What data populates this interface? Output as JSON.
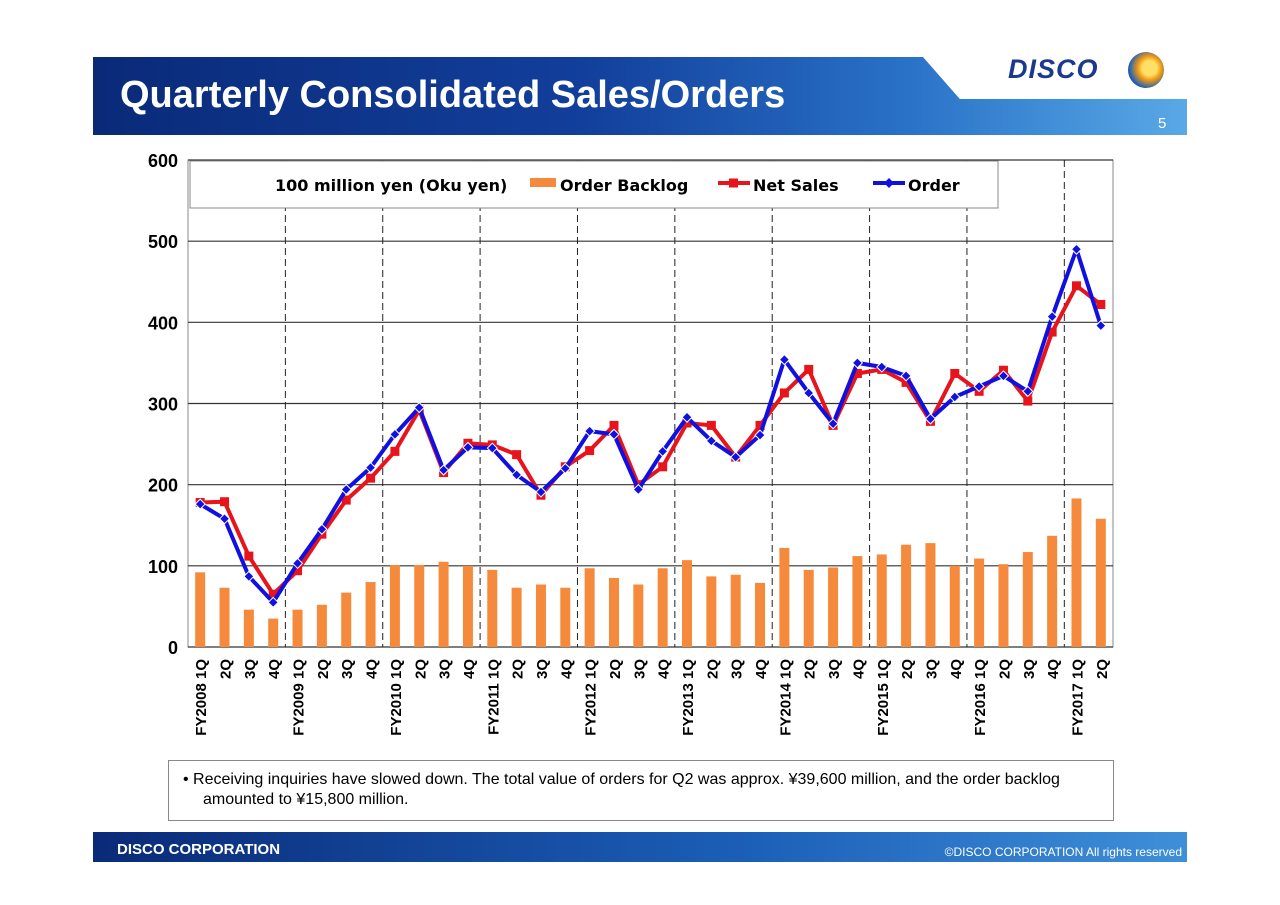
{
  "header": {
    "title": "Quarterly Consolidated Sales/Orders",
    "page_number": "5",
    "logo_text": "DISCO"
  },
  "note": "• Receiving inquiries have slowed down. The total value of orders for Q2 was approx. ¥39,600 million, and the order backlog amounted to ¥15,800 million.",
  "footer": {
    "company": "DISCO CORPORATION",
    "copyright": "©DISCO CORPORATION  All rights reserved"
  },
  "colors": {
    "backlog": "#f58a3c",
    "net_sales": "#e8141c",
    "order": "#1010e0"
  },
  "chart_data": {
    "type": "bar+line",
    "unit_label": "100 million yen (Oku yen)",
    "ylim": [
      0,
      600
    ],
    "yticks": [
      0,
      100,
      200,
      300,
      400,
      500,
      600
    ],
    "grid": true,
    "legend_position": "top",
    "categories": [
      "FY2008 1Q",
      "2Q",
      "3Q",
      "4Q",
      "FY2009 1Q",
      "2Q",
      "3Q",
      "4Q",
      "FY2010 1Q",
      "2Q",
      "3Q",
      "4Q",
      "FY2011 1Q",
      "2Q",
      "3Q",
      "4Q",
      "FY2012 1Q",
      "2Q",
      "3Q",
      "4Q",
      "FY2013 1Q",
      "2Q",
      "3Q",
      "4Q",
      "FY2014 1Q",
      "2Q",
      "3Q",
      "4Q",
      "FY2015 1Q",
      "2Q",
      "3Q",
      "4Q",
      "FY2016 1Q",
      "2Q",
      "3Q",
      "4Q",
      "FY2017 1Q",
      "2Q"
    ],
    "series": [
      {
        "name": "Order Backlog",
        "type": "bar",
        "values": [
          92,
          73,
          46,
          35,
          46,
          52,
          67,
          80,
          101,
          101,
          105,
          100,
          95,
          73,
          77,
          73,
          97,
          85,
          77,
          97,
          107,
          87,
          89,
          79,
          122,
          95,
          98,
          112,
          114,
          126,
          128,
          100,
          109,
          102,
          117,
          137,
          183,
          158
        ]
      },
      {
        "name": "Net Sales",
        "type": "line",
        "values": [
          178,
          179,
          112,
          65,
          94,
          139,
          181,
          208,
          241,
          292,
          215,
          251,
          249,
          237,
          187,
          222,
          242,
          273,
          200,
          222,
          276,
          273,
          234,
          273,
          313,
          342,
          273,
          337,
          342,
          326,
          278,
          337,
          315,
          341,
          303,
          388,
          445,
          422
        ]
      },
      {
        "name": "Order",
        "type": "line",
        "values": [
          176,
          158,
          87,
          55,
          103,
          145,
          194,
          221,
          262,
          295,
          218,
          246,
          245,
          212,
          191,
          220,
          266,
          262,
          194,
          241,
          283,
          254,
          234,
          261,
          354,
          313,
          275,
          350,
          345,
          334,
          281,
          308,
          321,
          334,
          315,
          407,
          490,
          396
        ]
      }
    ]
  }
}
